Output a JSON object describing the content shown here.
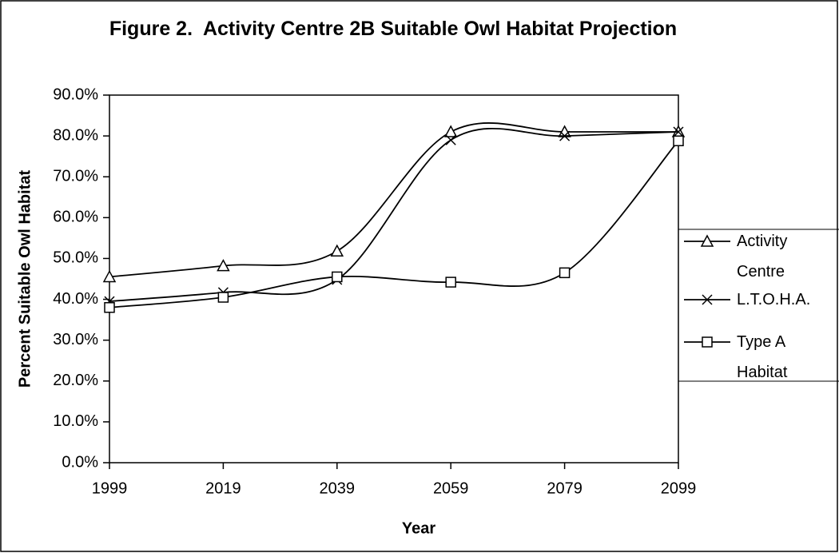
{
  "chart_data": {
    "type": "line",
    "title": "Figure 2.  Activity Centre 2B Suitable Owl Habitat Projection",
    "x_label": "Year",
    "y_label": "Percent Suitable Owl Habitat",
    "x": [
      1999,
      2019,
      2039,
      2059,
      2079,
      2099
    ],
    "xlim": [
      1999,
      2099
    ],
    "xticks": [
      1999,
      2019,
      2039,
      2059,
      2079,
      2099
    ],
    "ylim": [
      0,
      90
    ],
    "yticks": [
      {
        "value": 0,
        "label": "0.0%"
      },
      {
        "value": 10,
        "label": "10.0%"
      },
      {
        "value": 20,
        "label": "20.0%"
      },
      {
        "value": 30,
        "label": "30.0%"
      },
      {
        "value": 40,
        "label": "40.0%"
      },
      {
        "value": 50,
        "label": "50.0%"
      },
      {
        "value": 60,
        "label": "60.0%"
      },
      {
        "value": 70,
        "label": "70.0%"
      },
      {
        "value": 80,
        "label": "80.0%"
      },
      {
        "value": 90,
        "label": "90.0%"
      }
    ],
    "grid": false,
    "legend": "right",
    "smooth": true,
    "series": [
      {
        "name": "Activity Centre",
        "color": "#000000",
        "marker": "triangle",
        "values": [
          45.5,
          48.2,
          51.8,
          81.0,
          81.0,
          81.0
        ]
      },
      {
        "name": "L.T.O.H.A.",
        "color": "#000000",
        "marker": "x",
        "values": [
          39.5,
          41.7,
          44.8,
          79.0,
          80.0,
          81.0
        ]
      },
      {
        "name": "Type A Habitat",
        "color": "#000000",
        "marker": "square",
        "values": [
          38.0,
          40.5,
          45.5,
          44.2,
          46.5,
          78.8
        ]
      }
    ]
  }
}
